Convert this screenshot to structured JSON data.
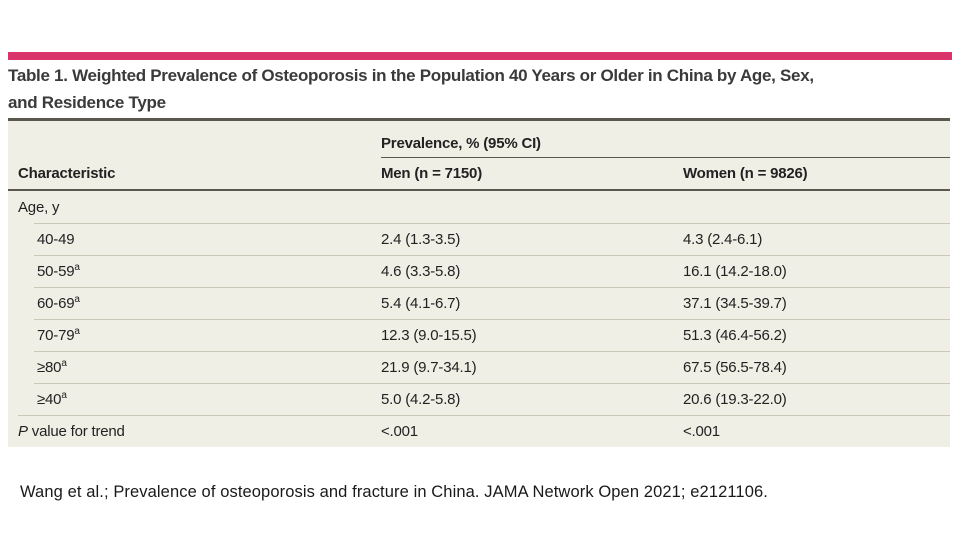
{
  "colors": {
    "accent_bar": "#d9356b",
    "table_background": "#f0efe6",
    "dark_rule": "#5a584f",
    "light_rule": "#cbc8b7"
  },
  "title": {
    "line1": "Table 1. Weighted Prevalence of Osteoporosis in the Population 40 Years or Older in China by Age, Sex,",
    "line2": "and Residence Type"
  },
  "table": {
    "spanner": "Prevalence, % (95% CI)",
    "columns": {
      "characteristic": "Characteristic",
      "men": "Men (n = 7150)",
      "women": "Women (n = 9826)"
    },
    "group_label": "Age, y",
    "rows": [
      {
        "label": "40-49",
        "sup": "",
        "men": "2.4 (1.3-3.5)",
        "women": "4.3 (2.4-6.1)"
      },
      {
        "label": "50-59",
        "sup": "a",
        "men": "4.6 (3.3-5.8)",
        "women": "16.1 (14.2-18.0)"
      },
      {
        "label": "60-69",
        "sup": "a",
        "men": "5.4 (4.1-6.7)",
        "women": "37.1 (34.5-39.7)"
      },
      {
        "label": "70-79",
        "sup": "a",
        "men": "12.3 (9.0-15.5)",
        "women": "51.3 (46.4-56.2)"
      },
      {
        "label": "≥80",
        "sup": "a",
        "men": "21.9 (9.7-34.1)",
        "women": "67.5 (56.5-78.4)"
      },
      {
        "label": "≥40",
        "sup": "a",
        "men": "5.0 (4.2-5.8)",
        "women": "20.6 (19.3-22.0)"
      }
    ],
    "p_row": {
      "label_italic": "P",
      "label_rest": " value for trend",
      "men": "<.001",
      "women": "<.001"
    }
  },
  "footer": {
    "citation": "Wang et al.; Prevalence of osteoporosis and fracture in China. JAMA Network Open 2021; e2121106."
  }
}
